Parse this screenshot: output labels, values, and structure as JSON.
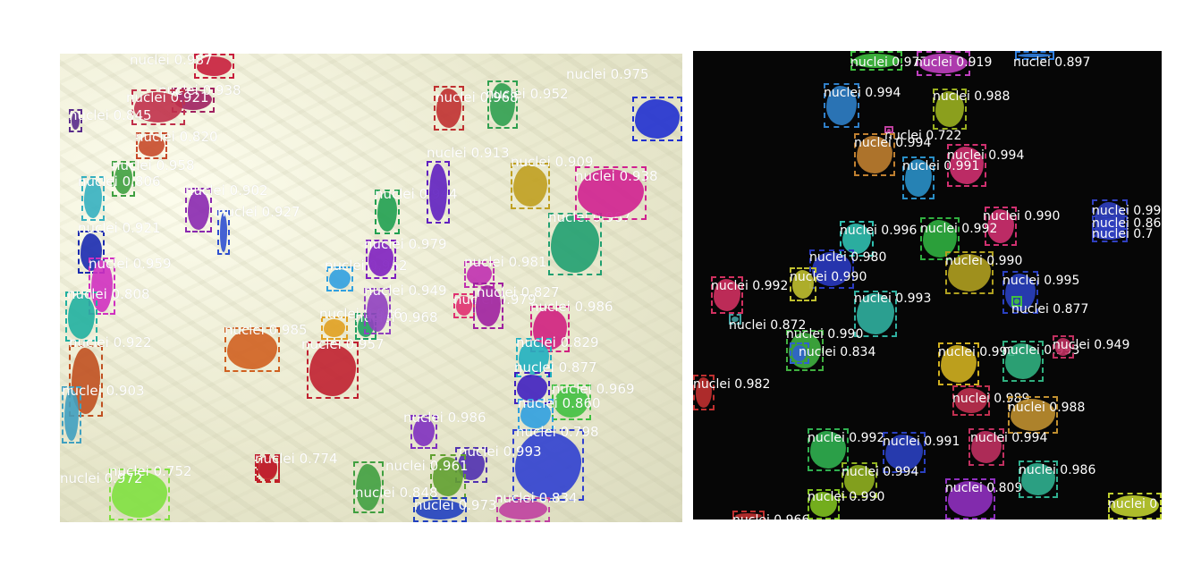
{
  "left_panel": {
    "label_prefix": "nuclei",
    "detections": [
      {
        "score": "0.987",
        "color": "#c81e3c"
      },
      {
        "score": "0.938",
        "color": "#a02060"
      },
      {
        "score": "0.921",
        "color": "#c0304a"
      },
      {
        "score": "0.845",
        "color": "#5a2c8c"
      },
      {
        "score": "0.820",
        "color": "#c84a2a"
      },
      {
        "score": "0.958",
        "color": "#3fa040"
      },
      {
        "score": "0.806",
        "color": "#35b0c0"
      },
      {
        "score": "0.902",
        "color": "#8a28b0"
      },
      {
        "score": "0.927",
        "color": "#3050d0"
      },
      {
        "score": "0.921",
        "color": "#1a2ab0"
      },
      {
        "score": "0.959",
        "color": "#d030c0"
      },
      {
        "score": "0.808",
        "color": "#20b0a0"
      },
      {
        "score": "0.922",
        "color": "#c05020"
      },
      {
        "score": "0.903",
        "color": "#40a0c0"
      },
      {
        "score": "0.972",
        "color": "#80e040"
      },
      {
        "score": "0.752",
        "color": "#c02020"
      },
      {
        "score": "0.985",
        "color": "#d06020"
      },
      {
        "score": "0.957",
        "color": "#c02030"
      },
      {
        "score": "0.968",
        "color": "#20a060"
      },
      {
        "score": "0.926",
        "color": "#e0a020"
      },
      {
        "score": "0.949",
        "color": "#9040c0"
      },
      {
        "score": "0.952",
        "color": "#30a0e0"
      },
      {
        "score": "0.979",
        "color": "#8020c0"
      },
      {
        "score": "0.944",
        "color": "#20a050"
      },
      {
        "score": "0.913",
        "color": "#6020c0"
      },
      {
        "score": "0.981",
        "color": "#c030b0"
      },
      {
        "score": "0.979",
        "color": "#e03070"
      },
      {
        "score": "0.827",
        "color": "#a020a0"
      },
      {
        "score": "0.986",
        "color": "#d02080"
      },
      {
        "score": "0.829",
        "color": "#20b0c0"
      },
      {
        "score": "0.877",
        "color": "#4020c0"
      },
      {
        "score": "0.969",
        "color": "#40c040"
      },
      {
        "score": "0.860",
        "color": "#30a0e0"
      },
      {
        "score": "0.798",
        "color": "#3040d0"
      },
      {
        "score": "0.993",
        "color": "#5030b0"
      },
      {
        "score": "0.961",
        "color": "#60a030"
      },
      {
        "score": "0.848",
        "color": "#40a040"
      },
      {
        "score": "0.973",
        "color": "#2040c0"
      },
      {
        "score": "0.834",
        "color": "#c040a0"
      },
      {
        "score": "0.774",
        "color": "#c02030"
      },
      {
        "score": "0.986",
        "color": "#8030c0"
      },
      {
        "score": "0.967",
        "color": "#20a070"
      },
      {
        "score": "0.938",
        "color": "#d02090"
      },
      {
        "score": "0.975",
        "color": "#2030d0"
      },
      {
        "score": "0.909",
        "color": "#c0a020"
      },
      {
        "score": "0.952",
        "color": "#30a050"
      },
      {
        "score": "0.968",
        "color": "#c03030"
      }
    ]
  },
  "right_panel": {
    "label_prefix": "nuclei",
    "detections": [
      {
        "score": "0.977",
        "color": "#40c040"
      },
      {
        "score": "0.919",
        "color": "#c040c0"
      },
      {
        "score": "0.897",
        "color": "#3080e0"
      },
      {
        "score": "0.994",
        "color": "#2f7fc8"
      },
      {
        "score": "0.988",
        "color": "#9ab020"
      },
      {
        "score": "0.722",
        "color": "#c040a0"
      },
      {
        "score": "0.994",
        "color": "#c08030"
      },
      {
        "score": "0.994",
        "color": "#d03070"
      },
      {
        "score": "0.991",
        "color": "#2a90c8"
      },
      {
        "score": "0.990",
        "color": "#d03070"
      },
      {
        "score": "0.996",
        "color": "#30c0b0"
      },
      {
        "score": "0.992",
        "color": "#30b040"
      },
      {
        "score": "0.980",
        "color": "#2a3ac0"
      },
      {
        "score": "0.990",
        "color": "#b0a020"
      },
      {
        "score": "0.990",
        "color": "#c0c030"
      },
      {
        "score": "0.992",
        "color": "#d03060"
      },
      {
        "score": "0.995",
        "color": "#2a40c0"
      },
      {
        "score": "0.993",
        "color": "#30b0a0"
      },
      {
        "score": "0.877",
        "color": "#40c040"
      },
      {
        "score": "0.872",
        "color": "#40a0a0"
      },
      {
        "score": "0.990",
        "color": "#40b040"
      },
      {
        "score": "0.834",
        "color": "#3060d0"
      },
      {
        "score": "0.982",
        "color": "#c03030"
      },
      {
        "score": "0.992",
        "color": "#d0b020"
      },
      {
        "score": "0.993",
        "color": "#30b080"
      },
      {
        "score": "0.949",
        "color": "#c03060"
      },
      {
        "score": "0.989",
        "color": "#c03050"
      },
      {
        "score": "0.988",
        "color": "#c09030"
      },
      {
        "score": "0.992",
        "color": "#30b050"
      },
      {
        "score": "0.991",
        "color": "#2a40c0"
      },
      {
        "score": "0.994",
        "color": "#c03060"
      },
      {
        "score": "0.994",
        "color": "#90b020"
      },
      {
        "score": "0.990",
        "color": "#80c020"
      },
      {
        "score": "0.809",
        "color": "#9030c0"
      },
      {
        "score": "0.986",
        "color": "#30b090"
      },
      {
        "score": "0.966",
        "color": "#c03030"
      },
      {
        "score": "0.99",
        "color": "#3040c0"
      },
      {
        "score": "0.86",
        "color": "#3040c0"
      },
      {
        "score": "0.7",
        "color": "#3040c0"
      },
      {
        "score": "0",
        "color": "#c0d030"
      }
    ]
  }
}
